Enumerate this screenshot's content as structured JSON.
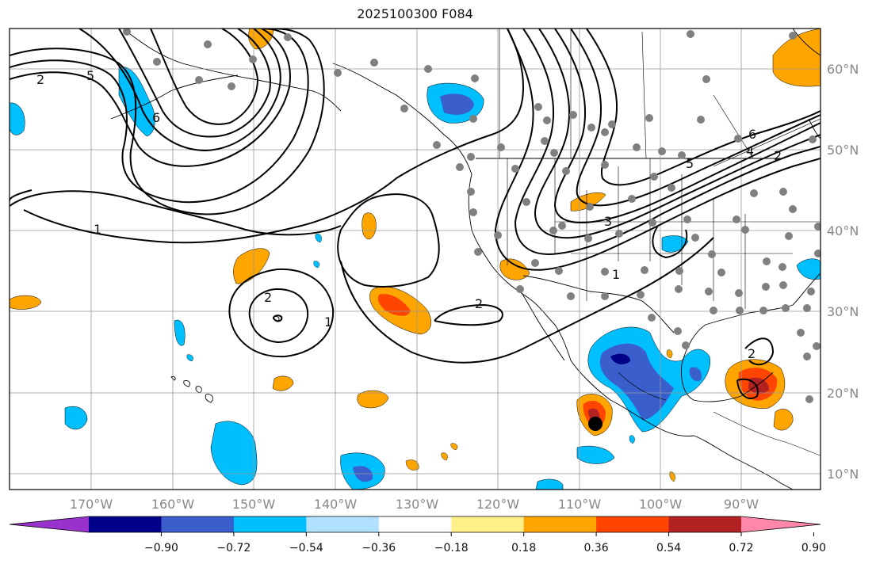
{
  "title": "2025100300 F084",
  "lon_labels": [
    "170°W",
    "160°W",
    "150°W",
    "140°W",
    "130°W",
    "120°W",
    "110°W",
    "100°W",
    "90°W"
  ],
  "lat_labels": [
    "60°N",
    "50°N",
    "40°N",
    "30°N",
    "20°N",
    "10°N"
  ],
  "colorbar": {
    "colors": [
      "#9932cc",
      "#00008b",
      "#3a5fcd",
      "#00bfff",
      "#b0e2ff",
      "#ffffff",
      "#fff08a",
      "#ffa500",
      "#ff4500",
      "#b22222",
      "#ff88aa"
    ],
    "ticks": [
      "−0.90",
      "−0.72",
      "−0.54",
      "−0.36",
      "−0.18",
      "0.18",
      "0.36",
      "0.54",
      "0.72",
      "0.90"
    ]
  },
  "contour_labels": [
    "2",
    "5",
    "6",
    "1",
    "2",
    "1",
    "2",
    "3",
    "1",
    "6",
    "4",
    "2",
    "5",
    "2"
  ],
  "colors": {
    "contour": "#000000",
    "grid": "#999999",
    "station": "#808080"
  }
}
